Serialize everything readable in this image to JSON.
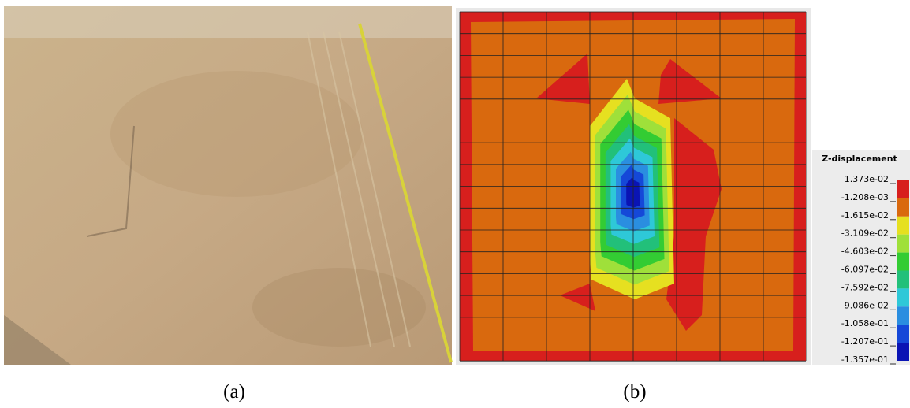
{
  "captions": [
    "(a)",
    "(b)"
  ],
  "legend": {
    "title": "Z-displacement",
    "labels": [
      "1.373e-02",
      "-1.208e-03",
      "-1.615e-02",
      "-3.109e-02",
      "-4.603e-02",
      "-6.097e-02",
      "-7.592e-02",
      "-9.086e-02",
      "-1.058e-01",
      "-1.207e-01",
      "-1.357e-01"
    ]
  }
}
